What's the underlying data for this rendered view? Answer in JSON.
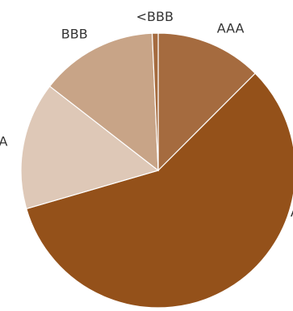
{
  "chart_data": {
    "type": "pie",
    "title": "",
    "start_angle_deg": 0,
    "direction": "clockwise",
    "legend": "none",
    "slices": [
      {
        "label": "AAA",
        "value": 12.5,
        "color": "#A56B3F"
      },
      {
        "label": "AA",
        "value": 58.0,
        "color": "#94511A"
      },
      {
        "label": "A",
        "value": 15.0,
        "color": "#DEC8B7"
      },
      {
        "label": "BBB",
        "value": 13.8,
        "color": "#C8A487"
      },
      {
        "label": "<BBB",
        "value": 0.7,
        "color": "#A56B3F"
      }
    ]
  }
}
